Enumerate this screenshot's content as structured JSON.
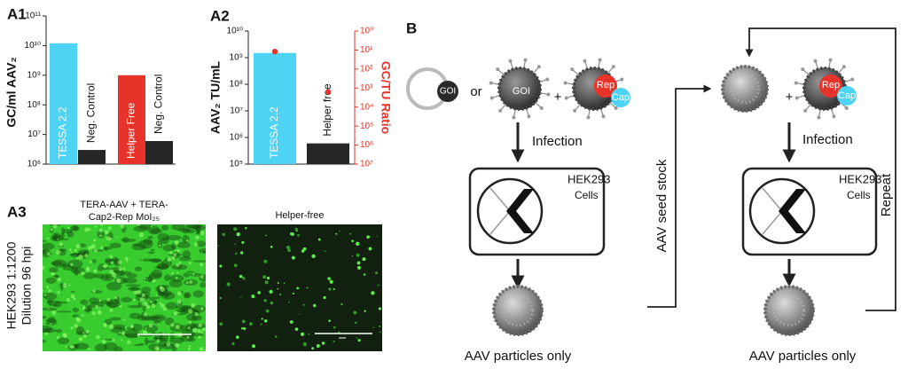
{
  "chart_data": [
    {
      "type": "bar",
      "title": "A1",
      "y_label": "GC/ml AAV₂",
      "categories": [
        "TESSA 2.2",
        "Neg. Control",
        "Helper Free",
        "Neg. Control"
      ],
      "values": [
        12000000000,
        3000000,
        1000000000,
        6000000
      ],
      "colors": [
        "#4fd3f5",
        "#262626",
        "#e8332a",
        "#262626"
      ],
      "log_scale": true,
      "ylim": [
        1000000,
        100000000000
      ],
      "yticks": [
        {
          "value": 1000000,
          "label": "10⁶"
        },
        {
          "value": 10000000,
          "label": "10⁷"
        },
        {
          "value": 100000000,
          "label": "10⁸"
        },
        {
          "value": 1000000000,
          "label": "10⁹"
        },
        {
          "value": 10000000000,
          "label": "10¹⁰"
        },
        {
          "value": 100000000000,
          "label": "10¹¹"
        }
      ]
    },
    {
      "type": "bar",
      "title": "A2",
      "y_label": "AAV₂ TU/mL",
      "y2_label": "GC/TU Ratio",
      "categories": [
        "TESSA 2.2",
        "Helper free"
      ],
      "values": [
        1500000000,
        600000
      ],
      "colors": [
        "#4fd3f5",
        "#262626"
      ],
      "log_scale": true,
      "ylim": [
        100000,
        10000000000
      ],
      "yticks": [
        {
          "value": 100000,
          "label": "10⁵"
        },
        {
          "value": 1000000,
          "label": "10⁶"
        },
        {
          "value": 10000000,
          "label": "10⁷"
        },
        {
          "value": 100000000,
          "label": "10⁸"
        },
        {
          "value": 1000000000,
          "label": "10⁹"
        },
        {
          "value": 10000000000,
          "label": "10¹⁰"
        }
      ],
      "y2lim": [
        10000000,
        1
      ],
      "y2ticks": [
        {
          "value": 1,
          "label": "10⁰"
        },
        {
          "value": 10,
          "label": "10¹"
        },
        {
          "value": 100,
          "label": "10²"
        },
        {
          "value": 1000,
          "label": "10³"
        },
        {
          "value": 10000,
          "label": "10⁴"
        },
        {
          "value": 100000,
          "label": "10⁵"
        },
        {
          "value": 1000000,
          "label": "10⁶"
        },
        {
          "value": 10000000,
          "label": "10⁷"
        }
      ],
      "y2_color": "#e8332a",
      "series": [
        {
          "axis": "y2",
          "color": "#e8332a",
          "values": [
            12,
            1600
          ]
        }
      ]
    }
  ],
  "micrographs": {
    "label": "A3",
    "row_label": [
      "HEK293 1:1200",
      "Dilution 96 hpi"
    ],
    "conditions": [
      [
        "TERA-AAV + TERA-",
        "Cap2-Rep MoI₂₅"
      ],
      [
        "Helper-free"
      ]
    ]
  },
  "diagram": {
    "label": "B",
    "first_round": {
      "plasmid_gene": "GOI",
      "or": "or",
      "virus_gene": "GOI",
      "plus": "+",
      "rep": "Rep",
      "cap": "Cap",
      "step": "Infection",
      "cell_line": "HEK293",
      "cells": "Cells",
      "product": "AAV particles only"
    },
    "link": "AAV seed stock",
    "second_round": {
      "plus": "+",
      "rep": "Rep",
      "cap": "Cap",
      "step": "Infection",
      "cell_line": "HEK293",
      "cells": "Cells",
      "product": "AAV particles only"
    },
    "loop": "Repeat"
  }
}
